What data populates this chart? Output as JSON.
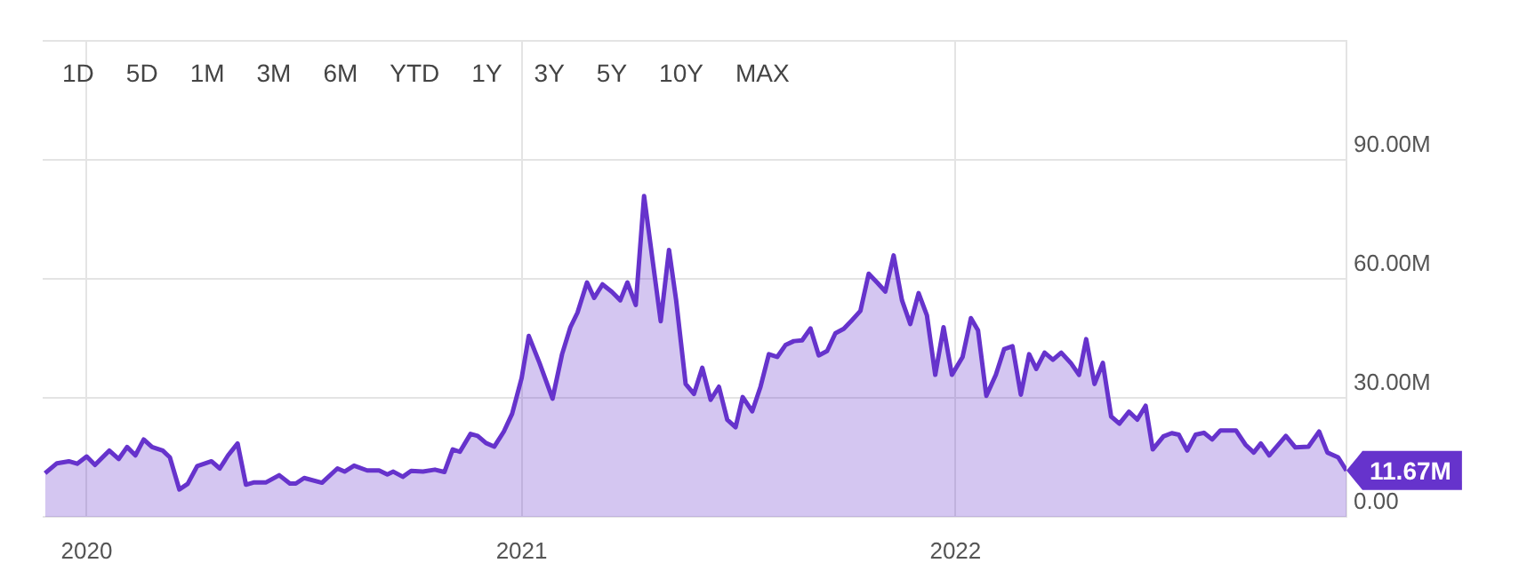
{
  "chart_data": {
    "type": "area",
    "x": [
      "2019-11-27",
      "2019-12-07",
      "2019-12-17",
      "2019-12-24",
      "2020-01-01",
      "2020-01-08",
      "2020-01-20",
      "2020-01-28",
      "2020-02-04",
      "2020-02-11",
      "2020-02-18",
      "2020-02-25",
      "2020-03-05",
      "2020-03-11",
      "2020-03-19",
      "2020-03-26",
      "2020-04-03",
      "2020-04-15",
      "2020-04-22",
      "2020-04-29",
      "2020-05-07",
      "2020-05-14",
      "2020-05-21",
      "2020-05-31",
      "2020-06-11",
      "2020-06-20",
      "2020-06-25",
      "2020-07-02",
      "2020-07-17",
      "2020-07-30",
      "2020-08-05",
      "2020-08-13",
      "2020-08-24",
      "2020-09-03",
      "2020-09-10",
      "2020-09-15",
      "2020-09-23",
      "2020-09-30",
      "2020-10-10",
      "2020-10-20",
      "2020-10-28",
      "2020-11-04",
      "2020-11-10",
      "2020-11-19",
      "2020-11-25",
      "2020-12-02",
      "2020-12-09",
      "2020-12-17",
      "2020-12-24",
      "2021-01-01",
      "2021-01-07",
      "2021-01-16",
      "2021-01-27",
      "2021-02-04",
      "2021-02-11",
      "2021-02-17",
      "2021-02-25",
      "2021-03-03",
      "2021-03-10",
      "2021-03-18",
      "2021-03-25",
      "2021-03-31",
      "2021-04-07",
      "2021-04-14",
      "2021-04-21",
      "2021-04-28",
      "2021-05-05",
      "2021-05-11",
      "2021-05-19",
      "2021-05-26",
      "2021-06-02",
      "2021-06-09",
      "2021-06-16",
      "2021-06-23",
      "2021-06-30",
      "2021-07-06",
      "2021-07-14",
      "2021-07-21",
      "2021-07-28",
      "2021-08-04",
      "2021-08-11",
      "2021-08-18",
      "2021-08-25",
      "2021-09-01",
      "2021-09-08",
      "2021-09-15",
      "2021-09-22",
      "2021-09-29",
      "2021-10-06",
      "2021-10-13",
      "2021-10-20",
      "2021-10-27",
      "2021-11-03",
      "2021-11-10",
      "2021-11-17",
      "2021-11-24",
      "2021-12-01",
      "2021-12-08",
      "2021-12-15",
      "2021-12-22",
      "2021-12-29",
      "2022-01-07",
      "2022-01-14",
      "2022-01-20",
      "2022-01-27",
      "2022-02-04",
      "2022-02-11",
      "2022-02-18",
      "2022-02-25",
      "2022-03-04",
      "2022-03-10",
      "2022-03-17",
      "2022-03-24",
      "2022-03-31",
      "2022-04-08",
      "2022-04-15",
      "2022-04-21",
      "2022-04-28",
      "2022-05-05",
      "2022-05-12",
      "2022-05-19",
      "2022-05-27",
      "2022-06-03",
      "2022-06-10",
      "2022-06-16",
      "2022-06-25",
      "2022-07-02",
      "2022-07-08",
      "2022-07-15",
      "2022-07-22",
      "2022-07-29",
      "2022-08-05",
      "2022-08-12",
      "2022-08-25",
      "2022-09-02",
      "2022-09-09",
      "2022-09-15",
      "2022-09-22",
      "2022-10-06",
      "2022-10-14",
      "2022-10-25",
      "2022-11-03",
      "2022-11-10",
      "2022-11-19",
      "2022-11-26"
    ],
    "series": [
      {
        "color": "#6633cc",
        "values": [
          11.0,
          13.5,
          14.0,
          13.4,
          15.2,
          13.1,
          16.7,
          14.6,
          17.6,
          15.5,
          19.5,
          17.6,
          16.7,
          15.0,
          6.9,
          8.3,
          12.8,
          14.0,
          12.2,
          15.5,
          18.5,
          8.1,
          8.7,
          8.7,
          10.5,
          8.4,
          8.4,
          9.8,
          8.6,
          12.2,
          11.4,
          12.9,
          11.7,
          11.7,
          10.7,
          11.4,
          10.1,
          11.6,
          11.4,
          11.9,
          11.3,
          17.0,
          16.4,
          20.9,
          20.4,
          18.6,
          17.7,
          21.5,
          26.0,
          35.0,
          45.6,
          38.8,
          29.8,
          41.0,
          47.8,
          51.5,
          59.1,
          55.2,
          58.6,
          56.7,
          54.6,
          59.1,
          53.4,
          80.9,
          65.1,
          49.3,
          67.3,
          54.6,
          33.5,
          31.0,
          37.6,
          29.5,
          32.8,
          24.5,
          22.6,
          30.2,
          26.6,
          32.8,
          41.0,
          40.3,
          43.3,
          44.3,
          44.5,
          47.5,
          40.7,
          41.8,
          46.3,
          47.4,
          49.6,
          51.9,
          61.3,
          59.1,
          56.8,
          65.9,
          54.6,
          48.6,
          56.4,
          50.8,
          35.8,
          47.8,
          35.8,
          40.3,
          50.1,
          47.0,
          30.5,
          35.8,
          42.3,
          43.0,
          30.8,
          41.0,
          37.3,
          41.4,
          39.6,
          41.4,
          38.8,
          35.8,
          44.8,
          33.5,
          38.8,
          25.3,
          23.5,
          26.5,
          24.5,
          28.0,
          17.0,
          20.3,
          21.1,
          20.7,
          16.7,
          20.7,
          21.2,
          19.5,
          21.8,
          21.8,
          18.2,
          16.2,
          18.5,
          15.5,
          20.4,
          17.5,
          17.7,
          21.5,
          16.2,
          15.0,
          11.67
        ]
      }
    ],
    "xlim": [
      "2019-11-25",
      "2022-11-26"
    ],
    "xticks": [
      {
        "value": "2020-01-01",
        "label": "2020"
      },
      {
        "value": "2021-01-01",
        "label": "2021"
      },
      {
        "value": "2022-01-01",
        "label": "2022"
      }
    ],
    "ylim": [
      0,
      120
    ],
    "yticks": [
      {
        "value": 0,
        "label": "0.00"
      },
      {
        "value": 30,
        "label": "30.00M"
      },
      {
        "value": 60,
        "label": "60.00M"
      },
      {
        "value": 90,
        "label": "90.00M"
      },
      {
        "value": 120,
        "label": null
      }
    ],
    "grid": true,
    "legend": false,
    "marker": "none",
    "line_style": "solid",
    "annotations": [
      "1D",
      "5D",
      "1M",
      "3M",
      "6M",
      "YTD",
      "1Y",
      "3Y",
      "5Y",
      "10Y",
      "MAX",
      {
        "text": "11.67M",
        "x": "2022-11-26",
        "y": 11.67
      }
    ]
  }
}
